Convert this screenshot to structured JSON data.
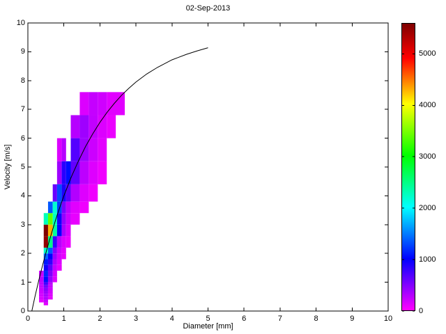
{
  "figure": {
    "background": "#FFFFFF"
  },
  "chart_data": {
    "type": "heatmap",
    "title": "02-Sep-2013",
    "xlabel": "Diameter [mm]",
    "ylabel": "Velocity [m/s]",
    "xlim": [
      0,
      10
    ],
    "ylim": [
      0,
      10
    ],
    "xticks": [
      0,
      1,
      2,
      3,
      4,
      5,
      6,
      7,
      8,
      9,
      10
    ],
    "yticks": [
      0,
      1,
      2,
      3,
      4,
      5,
      6,
      7,
      8,
      9,
      10
    ],
    "grid": false,
    "colorbar": {
      "min": 0,
      "max": 5600,
      "ticks": [
        0,
        1000,
        2000,
        3000,
        4000,
        5000
      ],
      "stops": [
        [
          0.0,
          "#FF00FF"
        ],
        [
          0.18,
          "#0000FF"
        ],
        [
          0.36,
          "#00FFFF"
        ],
        [
          0.54,
          "#00FF00"
        ],
        [
          0.72,
          "#FFFF00"
        ],
        [
          0.88,
          "#FF0000"
        ],
        [
          1.0,
          "#7F0000"
        ]
      ]
    },
    "curve": {
      "label": "terminal velocity curve",
      "color": "#000000",
      "points": [
        [
          0.11,
          0.0
        ],
        [
          0.2,
          0.52
        ],
        [
          0.3,
          1.05
        ],
        [
          0.4,
          1.55
        ],
        [
          0.5,
          2.02
        ],
        [
          0.6,
          2.46
        ],
        [
          0.7,
          2.88
        ],
        [
          0.8,
          3.28
        ],
        [
          0.9,
          3.65
        ],
        [
          1.0,
          4.0
        ],
        [
          1.2,
          4.64
        ],
        [
          1.4,
          5.2
        ],
        [
          1.6,
          5.71
        ],
        [
          1.8,
          6.15
        ],
        [
          2.0,
          6.55
        ],
        [
          2.2,
          6.9
        ],
        [
          2.4,
          7.21
        ],
        [
          2.6,
          7.49
        ],
        [
          2.8,
          7.73
        ],
        [
          3.0,
          7.95
        ],
        [
          3.3,
          8.23
        ],
        [
          3.6,
          8.46
        ],
        [
          4.0,
          8.72
        ],
        [
          4.4,
          8.91
        ],
        [
          4.7,
          9.03
        ],
        [
          5.0,
          9.14
        ]
      ]
    },
    "cells_format": [
      "d_min_mm",
      "v_min_ms",
      "d_max_mm",
      "v_max_ms",
      "count"
    ],
    "cells": [
      [
        0.44,
        0.2,
        0.56,
        0.3,
        120
      ],
      [
        0.31,
        0.3,
        0.44,
        0.4,
        90
      ],
      [
        0.44,
        0.3,
        0.56,
        0.4,
        220
      ],
      [
        0.31,
        0.4,
        0.44,
        0.5,
        140
      ],
      [
        0.44,
        0.4,
        0.56,
        0.5,
        300
      ],
      [
        0.56,
        0.4,
        0.69,
        0.5,
        110
      ],
      [
        0.31,
        0.5,
        0.44,
        0.6,
        170
      ],
      [
        0.44,
        0.5,
        0.56,
        0.6,
        340
      ],
      [
        0.56,
        0.5,
        0.69,
        0.6,
        140
      ],
      [
        0.31,
        0.6,
        0.44,
        0.7,
        190
      ],
      [
        0.44,
        0.6,
        0.56,
        0.7,
        400
      ],
      [
        0.56,
        0.6,
        0.69,
        0.7,
        170
      ],
      [
        0.31,
        0.7,
        0.44,
        0.8,
        210
      ],
      [
        0.44,
        0.7,
        0.56,
        0.8,
        470
      ],
      [
        0.56,
        0.7,
        0.69,
        0.8,
        190
      ],
      [
        0.31,
        0.8,
        0.44,
        0.9,
        230
      ],
      [
        0.44,
        0.8,
        0.56,
        0.9,
        560
      ],
      [
        0.56,
        0.8,
        0.69,
        0.9,
        220
      ],
      [
        0.31,
        0.9,
        0.44,
        1.0,
        250
      ],
      [
        0.44,
        0.9,
        0.56,
        1.0,
        760
      ],
      [
        0.56,
        0.9,
        0.69,
        1.0,
        260
      ],
      [
        0.31,
        1.0,
        0.44,
        1.2,
        260
      ],
      [
        0.44,
        1.0,
        0.56,
        1.2,
        1050
      ],
      [
        0.56,
        1.0,
        0.69,
        1.2,
        420
      ],
      [
        0.69,
        1.0,
        0.81,
        1.2,
        130
      ],
      [
        0.31,
        1.2,
        0.44,
        1.4,
        200
      ],
      [
        0.44,
        1.2,
        0.56,
        1.4,
        1150
      ],
      [
        0.56,
        1.2,
        0.69,
        1.4,
        520
      ],
      [
        0.69,
        1.2,
        0.81,
        1.4,
        170
      ],
      [
        0.44,
        1.4,
        0.56,
        1.6,
        950
      ],
      [
        0.56,
        1.4,
        0.69,
        1.6,
        640
      ],
      [
        0.69,
        1.4,
        0.81,
        1.6,
        230
      ],
      [
        0.81,
        1.4,
        0.94,
        1.6,
        100
      ],
      [
        0.44,
        1.6,
        0.56,
        1.8,
        1100
      ],
      [
        0.56,
        1.6,
        0.69,
        1.8,
        820
      ],
      [
        0.69,
        1.6,
        0.81,
        1.8,
        310
      ],
      [
        0.81,
        1.6,
        0.94,
        1.8,
        130
      ],
      [
        0.44,
        1.8,
        0.56,
        2.0,
        1400
      ],
      [
        0.56,
        1.8,
        0.69,
        2.0,
        1000
      ],
      [
        0.69,
        1.8,
        0.81,
        2.0,
        380
      ],
      [
        0.81,
        1.8,
        0.94,
        2.0,
        160
      ],
      [
        0.94,
        1.8,
        1.06,
        2.0,
        90
      ],
      [
        0.44,
        2.0,
        0.56,
        2.2,
        2250
      ],
      [
        0.56,
        2.0,
        0.69,
        2.2,
        1350
      ],
      [
        0.69,
        2.0,
        0.81,
        2.2,
        470
      ],
      [
        0.81,
        2.0,
        0.94,
        2.2,
        190
      ],
      [
        0.94,
        2.0,
        1.06,
        2.2,
        100
      ],
      [
        0.44,
        2.2,
        0.56,
        2.6,
        5500
      ],
      [
        0.56,
        2.2,
        0.69,
        2.6,
        2500
      ],
      [
        0.69,
        2.2,
        0.81,
        2.6,
        800
      ],
      [
        0.81,
        2.2,
        0.94,
        2.6,
        280
      ],
      [
        0.94,
        2.2,
        1.06,
        2.6,
        140
      ],
      [
        1.06,
        2.2,
        1.19,
        2.6,
        80
      ],
      [
        0.44,
        2.6,
        0.56,
        3.0,
        5600
      ],
      [
        0.56,
        2.6,
        0.69,
        3.0,
        4300
      ],
      [
        0.69,
        2.6,
        0.81,
        3.0,
        2400
      ],
      [
        0.81,
        2.6,
        0.94,
        3.0,
        1000
      ],
      [
        0.94,
        2.6,
        1.06,
        3.0,
        330
      ],
      [
        1.06,
        2.6,
        1.19,
        3.0,
        150
      ],
      [
        0.44,
        3.0,
        0.56,
        3.4,
        2300
      ],
      [
        0.56,
        3.0,
        0.69,
        3.4,
        3400
      ],
      [
        0.69,
        3.0,
        0.81,
        3.4,
        2250
      ],
      [
        0.81,
        3.0,
        0.94,
        3.4,
        950
      ],
      [
        0.94,
        3.0,
        1.06,
        3.4,
        420
      ],
      [
        1.06,
        3.0,
        1.19,
        3.4,
        200
      ],
      [
        1.19,
        3.0,
        1.44,
        3.4,
        90
      ],
      [
        0.56,
        3.4,
        0.69,
        3.8,
        1350
      ],
      [
        0.69,
        3.4,
        0.81,
        3.8,
        2200
      ],
      [
        0.81,
        3.4,
        0.94,
        3.8,
        1250
      ],
      [
        0.94,
        3.4,
        1.06,
        3.8,
        520
      ],
      [
        1.06,
        3.4,
        1.19,
        3.8,
        260
      ],
      [
        1.19,
        3.4,
        1.44,
        3.8,
        120
      ],
      [
        1.44,
        3.4,
        1.69,
        3.8,
        60
      ],
      [
        0.69,
        3.8,
        0.81,
        4.4,
        600
      ],
      [
        0.81,
        3.8,
        0.94,
        4.4,
        1300
      ],
      [
        0.94,
        3.8,
        1.06,
        4.4,
        900
      ],
      [
        1.06,
        3.8,
        1.19,
        4.4,
        650
      ],
      [
        1.19,
        3.8,
        1.44,
        4.4,
        300
      ],
      [
        1.44,
        3.8,
        1.69,
        4.4,
        130
      ],
      [
        1.69,
        3.8,
        1.94,
        4.4,
        60
      ],
      [
        0.81,
        4.4,
        0.94,
        5.2,
        380
      ],
      [
        0.94,
        4.4,
        1.06,
        5.2,
        850
      ],
      [
        1.06,
        4.4,
        1.19,
        5.2,
        1050
      ],
      [
        1.19,
        4.4,
        1.44,
        5.2,
        620
      ],
      [
        1.44,
        4.4,
        1.69,
        5.2,
        260
      ],
      [
        1.69,
        4.4,
        1.94,
        5.2,
        130
      ],
      [
        1.94,
        4.4,
        2.19,
        5.2,
        60
      ],
      [
        0.81,
        5.2,
        0.94,
        6.0,
        140
      ],
      [
        0.94,
        5.2,
        1.06,
        6.0,
        290
      ],
      [
        1.19,
        5.2,
        1.44,
        6.0,
        680
      ],
      [
        1.44,
        5.2,
        1.69,
        6.0,
        380
      ],
      [
        1.69,
        5.2,
        1.94,
        6.0,
        200
      ],
      [
        1.94,
        5.2,
        2.19,
        6.0,
        110
      ],
      [
        1.19,
        6.0,
        1.44,
        6.8,
        290
      ],
      [
        1.44,
        6.0,
        1.69,
        6.8,
        380
      ],
      [
        1.69,
        6.0,
        1.94,
        6.8,
        240
      ],
      [
        1.94,
        6.0,
        2.19,
        6.8,
        140
      ],
      [
        2.19,
        6.0,
        2.44,
        6.8,
        80
      ],
      [
        1.44,
        6.8,
        1.69,
        7.6,
        140
      ],
      [
        1.69,
        6.8,
        1.94,
        7.6,
        230
      ],
      [
        1.94,
        6.8,
        2.19,
        7.6,
        190
      ],
      [
        2.19,
        6.8,
        2.69,
        7.6,
        120
      ]
    ]
  }
}
